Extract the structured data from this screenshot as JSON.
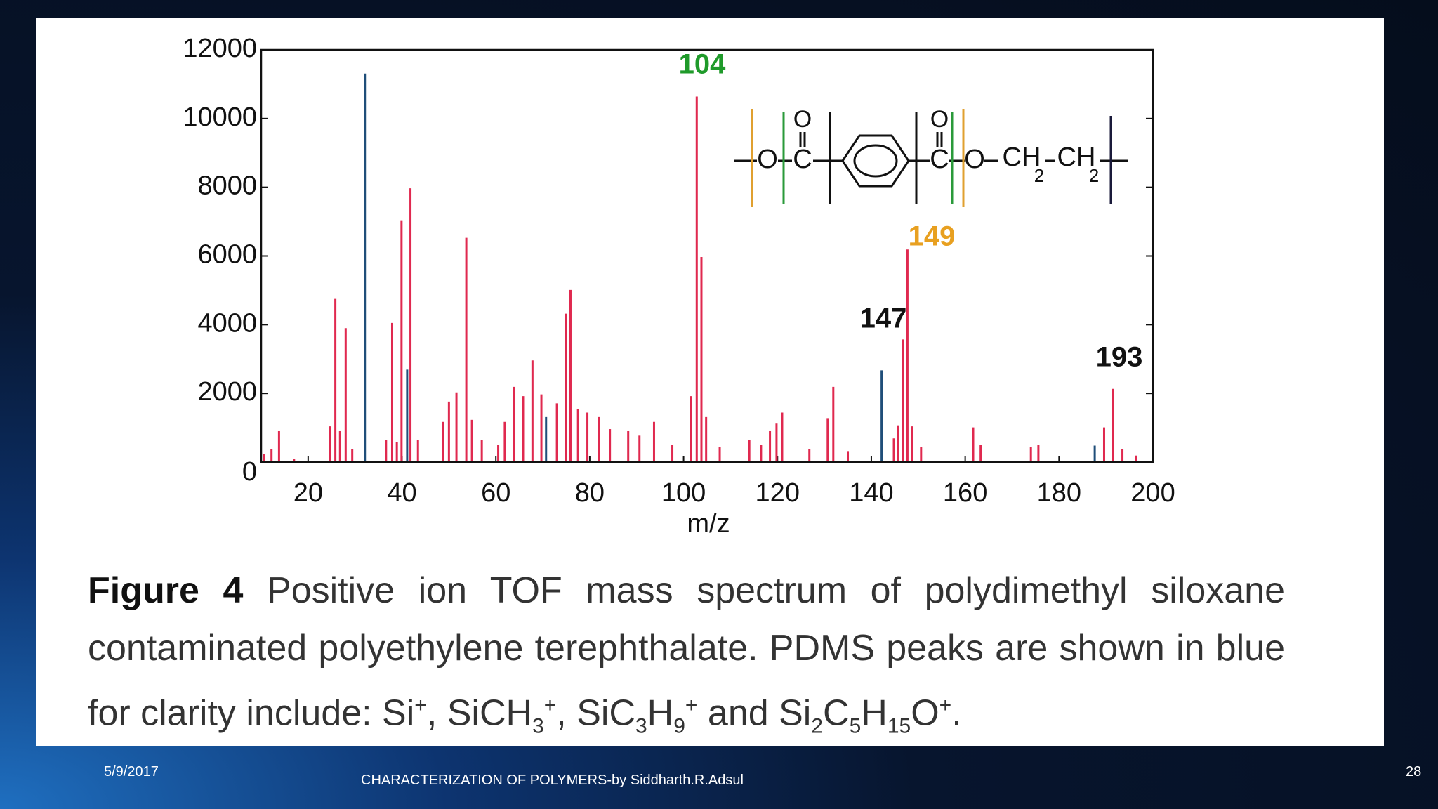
{
  "slide": {
    "caption": [
      {
        "text": "Figure 4",
        "style": "bold"
      },
      {
        "text": " Positive ion TOF mass spectrum of polydimethyl siloxane contaminated polyethylene terephthalate. PDMS peaks are shown in blue for clarity include: Si"
      },
      {
        "text": "+",
        "style": "sup"
      },
      {
        "text": ", SiCH"
      },
      {
        "text": "3",
        "style": "sub"
      },
      {
        "text": "+",
        "style": "sup"
      },
      {
        "text": ", SiC"
      },
      {
        "text": "3",
        "style": "sub"
      },
      {
        "text": "H"
      },
      {
        "text": "9",
        "style": "sub"
      },
      {
        "text": "+",
        "style": "sup"
      },
      {
        "text": " and Si"
      },
      {
        "text": "2",
        "style": "sub"
      },
      {
        "text": "C"
      },
      {
        "text": "5",
        "style": "sub"
      },
      {
        "text": "H"
      },
      {
        "text": "15",
        "style": "sub"
      },
      {
        "text": "O"
      },
      {
        "text": "+",
        "style": "sup"
      },
      {
        "text": "."
      }
    ],
    "date": "5/9/2017",
    "footer": "CHARACTERIZATION OF POLYMERS-by Siddharth.R.Adsul",
    "page_number": "28",
    "structure": {
      "labels": [
        "O",
        "O",
        "C",
        "O",
        "C",
        "O",
        "CH",
        "2",
        "CH",
        "2"
      ]
    }
  },
  "chart_data": {
    "type": "stem",
    "x_label": "m/z",
    "xlim": [
      10,
      200
    ],
    "xticks": [
      20,
      40,
      60,
      80,
      100,
      120,
      140,
      160,
      180,
      200
    ],
    "ylim": [
      0,
      12000
    ],
    "yticks": [
      0,
      2000,
      4000,
      6000,
      8000,
      10000,
      12000
    ],
    "annotations": [
      {
        "text": "104",
        "color": "#1f9a2a"
      },
      {
        "text": "149",
        "color": "#e8a020"
      },
      {
        "text": "147",
        "color": "#111111"
      },
      {
        "text": "193",
        "color": "#111111"
      }
    ],
    "series": [
      {
        "color": "#e0294f",
        "x": [
          10.6,
          12.2,
          13.8,
          17,
          24.7,
          25.8,
          26.8,
          28,
          29.4,
          36.6,
          37.9,
          38.9,
          39.9,
          41.8,
          43.4,
          48.8,
          50,
          51.6,
          53.7,
          54.9,
          57,
          60.5,
          61.9,
          63.9,
          65.8,
          67.8,
          69.7,
          73,
          75,
          75.9,
          77.5,
          79.5,
          82,
          84.3,
          88.2,
          90.6,
          93.7,
          97.6,
          101.5,
          102.8,
          103.8,
          104.8,
          107.7,
          114,
          116.5,
          118.4,
          119.8,
          121,
          126.8,
          130.7,
          131.9,
          135,
          144.8,
          145.7,
          146.7,
          147.7,
          148.7,
          150.6,
          161.7,
          163.3,
          174,
          175.6,
          189.6,
          191.5,
          193.5,
          196.4
        ],
        "values": [
          240,
          370,
          900,
          100,
          1040,
          4750,
          900,
          3900,
          370,
          640,
          4050,
          590,
          7040,
          7970,
          640,
          1170,
          1760,
          2030,
          6530,
          1230,
          640,
          510,
          1170,
          2190,
          1920,
          2960,
          1970,
          1710,
          4320,
          5010,
          1550,
          1440,
          1310,
          960,
          900,
          770,
          1170,
          510,
          1920,
          10640,
          5970,
          1310,
          430,
          640,
          510,
          900,
          1120,
          1440,
          370,
          1280,
          2190,
          320,
          690,
          1070,
          3570,
          6190,
          1040,
          430,
          1010,
          510,
          430,
          510,
          1010,
          2130,
          370,
          190
        ]
      },
      {
        "color": "#1f4e79",
        "x": [
          32.1,
          41.1,
          70.7,
          142.2,
          187.6
        ],
        "values": [
          11310,
          2690,
          1310,
          2670,
          480
        ]
      }
    ]
  }
}
